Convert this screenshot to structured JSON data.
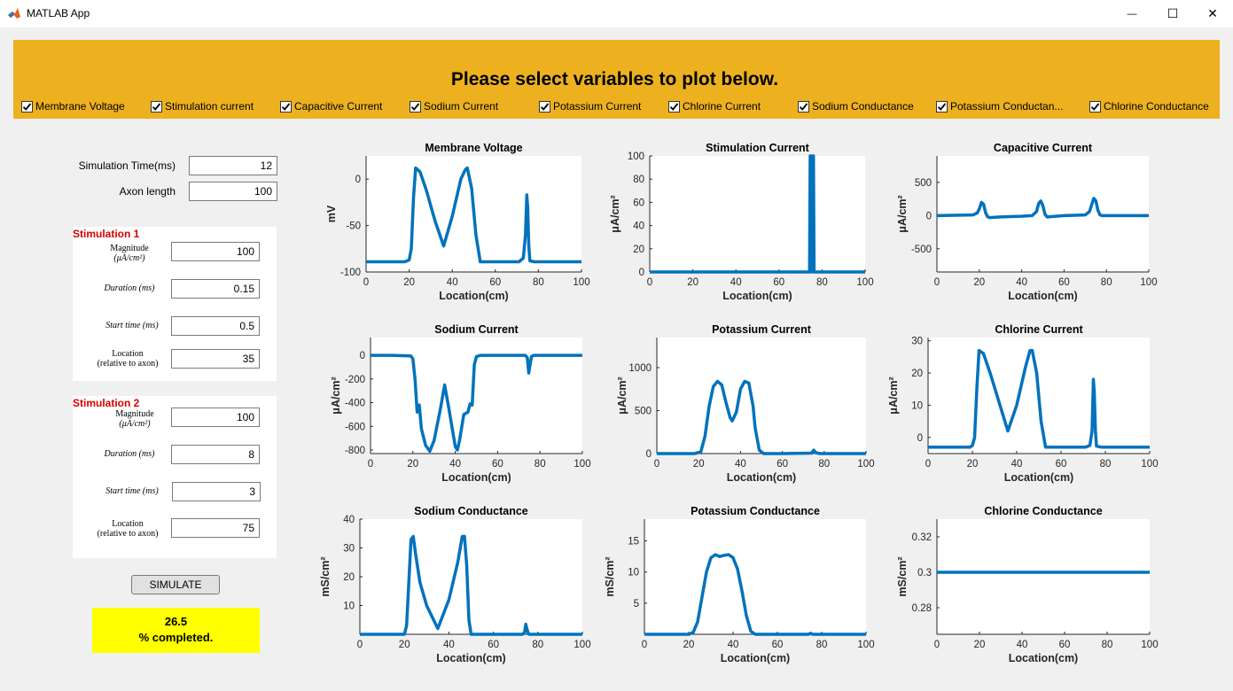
{
  "window": {
    "title": "MATLAB App",
    "minimize_glyph": "—",
    "maximize_glyph": "☐",
    "close_glyph": "✕"
  },
  "header": {
    "title": "Please select variables to plot below.",
    "background": "#edb120",
    "checkboxes": [
      {
        "label": "Membrane Voltage",
        "checked": true
      },
      {
        "label": "Stimulation current",
        "checked": true
      },
      {
        "label": "Capacitive Current",
        "checked": true
      },
      {
        "label": "Sodium Current",
        "checked": true
      },
      {
        "label": "Potassium Current",
        "checked": true
      },
      {
        "label": "Chlorine Current",
        "checked": true
      },
      {
        "label": "Sodium Conductance",
        "checked": true
      },
      {
        "label": "Potassium Conductan...",
        "checked": true
      },
      {
        "label": "Chlorine Conductance",
        "checked": true
      }
    ]
  },
  "controls": {
    "sim_time_label": "Simulation Time(ms)",
    "sim_time_value": "12",
    "axon_length_label": "Axon length",
    "axon_length_value": "100",
    "stim1": {
      "title": "Stimulation 1",
      "magnitude_label": "Magnitude",
      "magnitude_unit": "(μA/cm²)",
      "magnitude_value": "100",
      "duration_label": "Duration (ms)",
      "duration_value": "0.15",
      "start_label": "Start time (ms)",
      "start_value": "0.5",
      "location_label": "Location",
      "location_sub": "(relative to axon)",
      "location_value": "35"
    },
    "stim2": {
      "title": "Stimulation 2",
      "magnitude_label": "Magnitude",
      "magnitude_unit": "(μA/cm²)",
      "magnitude_value": "100",
      "duration_label": "Duration (ms)",
      "duration_value": "8",
      "start_label": "Start time (ms)",
      "start_value": "3",
      "location_label": "Location",
      "location_sub": "(relative to axon)",
      "location_value": "75"
    },
    "simulate_label": "SIMULATE",
    "progress_value": "26.5",
    "progress_text": "% completed.",
    "progress_color": "#ffff00"
  },
  "line_color": "#0072bd",
  "chart_data": [
    {
      "type": "line",
      "title": "Membrane Voltage",
      "xlabel": "Location(cm)",
      "ylabel": "mV",
      "xlim": [
        0,
        100
      ],
      "ylim": [
        -100,
        25
      ],
      "xticks": [
        0,
        20,
        40,
        60,
        80,
        100
      ],
      "yticks": [
        -100,
        -50,
        0
      ],
      "x": [
        0,
        10,
        18,
        20,
        21,
        22,
        23,
        25,
        28,
        32,
        36,
        40,
        44,
        46,
        47,
        49,
        51,
        53,
        71,
        73,
        74,
        74.6,
        75,
        75.5,
        76,
        78,
        90,
        100
      ],
      "y": [
        -89,
        -89,
        -89,
        -87,
        -75,
        -20,
        12,
        8,
        -12,
        -45,
        -72,
        -40,
        0,
        10,
        12,
        -10,
        -60,
        -89,
        -89,
        -85,
        -60,
        -17,
        -30,
        -70,
        -88,
        -89,
        -89,
        -89
      ]
    },
    {
      "type": "line",
      "title": "Stimulation Current",
      "xlabel": "Location(cm)",
      "ylabel": "μA/cm²",
      "xlim": [
        0,
        100
      ],
      "ylim": [
        0,
        100
      ],
      "xticks": [
        0,
        20,
        40,
        60,
        80,
        100
      ],
      "yticks": [
        0,
        20,
        40,
        60,
        80,
        100
      ],
      "x": [
        0,
        73.9,
        74.2,
        74.5,
        74.8,
        75.1,
        75.4,
        75.7,
        76.0,
        76.3,
        100
      ],
      "y": [
        0,
        0,
        0,
        100,
        100,
        0,
        0,
        100,
        100,
        0,
        0
      ]
    },
    {
      "type": "line",
      "title": "Capacitive Current",
      "xlabel": "Location(cm)",
      "ylabel": "μA/cm²",
      "xlim": [
        0,
        100
      ],
      "ylim": [
        -850,
        900
      ],
      "xticks": [
        0,
        20,
        40,
        60,
        80,
        100
      ],
      "yticks": [
        -500,
        0,
        500
      ],
      "x": [
        0,
        17,
        19,
        20,
        21,
        22,
        23,
        24,
        25,
        30,
        40,
        45,
        47,
        48,
        49,
        50,
        51,
        52,
        60,
        70,
        72,
        73,
        74,
        75,
        76,
        77,
        78,
        90,
        100
      ],
      "y": [
        0,
        10,
        40,
        100,
        200,
        170,
        40,
        -20,
        -30,
        -20,
        -10,
        0,
        60,
        180,
        220,
        150,
        20,
        -20,
        0,
        10,
        60,
        160,
        260,
        220,
        80,
        10,
        0,
        0,
        0
      ]
    },
    {
      "type": "line",
      "title": "Sodium Current",
      "xlabel": "Location(cm)",
      "ylabel": "μA/cm²",
      "xlim": [
        0,
        100
      ],
      "ylim": [
        -830,
        150
      ],
      "xticks": [
        0,
        20,
        40,
        60,
        80,
        100
      ],
      "yticks": [
        -800,
        -600,
        -400,
        -200,
        0
      ],
      "x": [
        0,
        10,
        19,
        20,
        21,
        22,
        23,
        24,
        26,
        28,
        30,
        33,
        35,
        37,
        40,
        41,
        42,
        44,
        46,
        47,
        48,
        49,
        50,
        52,
        60,
        73,
        74,
        74.7,
        75.3,
        76,
        77,
        90,
        100
      ],
      "y": [
        0,
        0,
        -5,
        -30,
        -200,
        -480,
        -420,
        -620,
        -760,
        -810,
        -720,
        -450,
        -250,
        -450,
        -770,
        -800,
        -720,
        -500,
        -480,
        -410,
        -420,
        -80,
        -10,
        0,
        0,
        0,
        -20,
        -150,
        -80,
        -10,
        0,
        0,
        0
      ]
    },
    {
      "type": "line",
      "title": "Potassium Current",
      "xlabel": "Location(cm)",
      "ylabel": "μA/cm²",
      "xlim": [
        0,
        100
      ],
      "ylim": [
        0,
        1350
      ],
      "xticks": [
        0,
        20,
        40,
        60,
        80,
        100
      ],
      "yticks": [
        0,
        500,
        1000
      ],
      "x": [
        0,
        18,
        21,
        23,
        25,
        27,
        29,
        31,
        33,
        35,
        36,
        38,
        40,
        42,
        44,
        46,
        47,
        49,
        51,
        60,
        74,
        75,
        76,
        78,
        100
      ],
      "y": [
        0,
        0,
        20,
        200,
        550,
        780,
        840,
        800,
        600,
        420,
        380,
        480,
        750,
        840,
        820,
        550,
        300,
        40,
        0,
        0,
        5,
        40,
        10,
        0,
        0
      ]
    },
    {
      "type": "line",
      "title": "Chlorine Current",
      "xlabel": "Location(cm)",
      "ylabel": "μA/cm²",
      "xlim": [
        0,
        100
      ],
      "ylim": [
        -5,
        31
      ],
      "xticks": [
        0,
        20,
        40,
        60,
        80,
        100
      ],
      "yticks": [
        0,
        10,
        20,
        30
      ],
      "x": [
        0,
        15,
        19,
        20,
        21,
        22,
        23,
        25,
        28,
        32,
        36,
        40,
        44,
        46,
        47,
        49,
        51,
        53,
        71,
        73,
        74,
        74.6,
        75,
        75.5,
        76,
        78,
        90,
        100
      ],
      "y": [
        -3,
        -3,
        -3,
        -2.5,
        0,
        15,
        27,
        26,
        20,
        11,
        2,
        10,
        22,
        27,
        27,
        20,
        5,
        -3,
        -3,
        -2.5,
        2,
        18,
        14,
        2,
        -2.7,
        -3,
        -3,
        -3
      ]
    },
    {
      "type": "line",
      "title": "Sodium Conductance",
      "xlabel": "Location(cm)",
      "ylabel": "mS/cm²",
      "xlim": [
        0,
        100
      ],
      "ylim": [
        0,
        40
      ],
      "xticks": [
        0,
        20,
        40,
        60,
        80,
        100
      ],
      "yticks": [
        10,
        20,
        30,
        40
      ],
      "x": [
        0,
        20,
        21,
        22,
        23,
        24,
        25,
        27,
        30,
        35,
        40,
        44,
        46,
        47,
        48,
        49,
        50,
        73,
        74,
        74.6,
        75,
        75.6,
        76,
        100
      ],
      "y": [
        0,
        0,
        3,
        18,
        33,
        34,
        28,
        18,
        10,
        2,
        12,
        25,
        34,
        34,
        24,
        5,
        0,
        0,
        0.5,
        3.5,
        2,
        0.5,
        0,
        0
      ]
    },
    {
      "type": "line",
      "title": "Potassium Conductance",
      "xlabel": "Location(cm)",
      "ylabel": "mS/cm²",
      "xlim": [
        0,
        100
      ],
      "ylim": [
        0,
        18.5
      ],
      "xticks": [
        0,
        20,
        40,
        60,
        80,
        100
      ],
      "yticks": [
        5,
        10,
        15
      ],
      "x": [
        0,
        20,
        22,
        24,
        26,
        28,
        30,
        32,
        34,
        36,
        38,
        40,
        42,
        44,
        46,
        48,
        50,
        74,
        75,
        76,
        100
      ],
      "y": [
        0,
        0,
        0.3,
        2,
        6,
        10,
        12.3,
        12.8,
        12.5,
        12.7,
        12.8,
        12.3,
        10.5,
        7,
        3,
        0.5,
        0,
        0,
        0.15,
        0,
        0
      ]
    },
    {
      "type": "line",
      "title": "Chlorine Conductance",
      "xlabel": "Location(cm)",
      "ylabel": "mS/cm²",
      "xlim": [
        0,
        100
      ],
      "ylim": [
        0.265,
        0.33
      ],
      "xticks": [
        0,
        20,
        40,
        60,
        80,
        100
      ],
      "yticks": [
        0.28,
        0.3,
        0.32
      ],
      "x": [
        0,
        100
      ],
      "y": [
        0.3,
        0.3
      ]
    }
  ]
}
